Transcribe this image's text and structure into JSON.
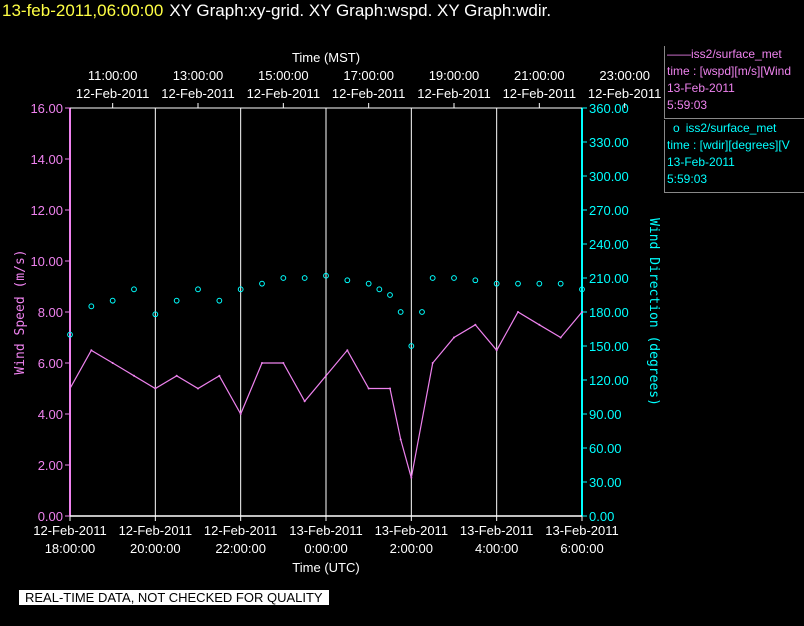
{
  "header": {
    "time": "13-feb-2011,06:00:00",
    "graphs": "XY Graph:xy-grid.  XY Graph:wspd.  XY Graph:wdir."
  },
  "legend": {
    "wspd": {
      "symbol": "——",
      "source": "iss2/surface_met",
      "desc": "time : [wspd][m/s][Wind",
      "date": "13-Feb-2011",
      "time": "5:59:03"
    },
    "wdir": {
      "symbol": "o",
      "source": "iss2/surface_met",
      "desc": "time : [wdir][degrees][V",
      "date": "13-Feb-2011",
      "time": "5:59:03"
    }
  },
  "disclaimer": "REAL-TIME DATA, NOT CHECKED FOR QUALITY",
  "colors": {
    "wspd": "#ee82ee",
    "wdir": "#00ffff",
    "grid": "#ffffff",
    "background": "#000000"
  },
  "chart_data": {
    "type": "line",
    "top_axis": {
      "label": "Time (MST)",
      "ticks": [
        {
          "time": "11:00:00",
          "date": "12-Feb-2011"
        },
        {
          "time": "13:00:00",
          "date": "12-Feb-2011"
        },
        {
          "time": "15:00:00",
          "date": "12-Feb-2011"
        },
        {
          "time": "17:00:00",
          "date": "12-Feb-2011"
        },
        {
          "time": "19:00:00",
          "date": "12-Feb-2011"
        },
        {
          "time": "21:00:00",
          "date": "12-Feb-2011"
        },
        {
          "time": "23:00:00",
          "date": "12-Feb-2011"
        }
      ]
    },
    "bottom_axis": {
      "label": "Time (UTC)",
      "range_hours_utc": [
        18,
        30
      ],
      "ticks": [
        {
          "date": "12-Feb-2011",
          "time": "18:00:00"
        },
        {
          "date": "12-Feb-2011",
          "time": "20:00:00"
        },
        {
          "date": "12-Feb-2011",
          "time": "22:00:00"
        },
        {
          "date": "13-Feb-2011",
          "time": "0:00:00"
        },
        {
          "date": "13-Feb-2011",
          "time": "2:00:00"
        },
        {
          "date": "13-Feb-2011",
          "time": "4:00:00"
        },
        {
          "date": "13-Feb-2011",
          "time": "6:00:00"
        }
      ]
    },
    "left_axis": {
      "label": "Wind Speed (m/s)",
      "ylim": [
        0,
        16
      ],
      "ticks": [
        "0.00",
        "2.00",
        "4.00",
        "6.00",
        "8.00",
        "10.00",
        "12.00",
        "14.00",
        "16.00"
      ]
    },
    "right_axis": {
      "label": "Wind Direction (degrees)",
      "ylim": [
        0,
        360
      ],
      "ticks": [
        "0.00",
        "30.00",
        "60.00",
        "90.00",
        "120.00",
        "150.00",
        "180.00",
        "210.00",
        "240.00",
        "270.00",
        "300.00",
        "330.00",
        "360.00"
      ]
    },
    "grid": "vertical",
    "series": [
      {
        "key": "wspd",
        "axis": "left",
        "style": "line",
        "x": [
          18.0,
          18.5,
          19.0,
          19.5,
          20.0,
          20.5,
          21.0,
          21.5,
          22.0,
          22.5,
          23.0,
          23.5,
          24.0,
          24.5,
          25.0,
          25.5,
          25.75,
          26.0,
          26.5,
          27.0,
          27.5,
          28.0,
          28.5,
          29.0,
          29.5,
          30.0
        ],
        "values": [
          5.0,
          6.5,
          6.0,
          5.5,
          5.0,
          5.5,
          5.0,
          5.5,
          4.0,
          6.0,
          6.0,
          4.5,
          5.5,
          6.5,
          5.0,
          5.0,
          3.0,
          1.5,
          6.0,
          7.0,
          7.5,
          6.5,
          8.0,
          7.5,
          7.0,
          8.0
        ]
      },
      {
        "key": "wdir",
        "axis": "right",
        "style": "scatter",
        "x": [
          18.0,
          18.5,
          19.0,
          19.5,
          20.0,
          20.5,
          21.0,
          21.5,
          22.0,
          22.5,
          23.0,
          23.5,
          24.0,
          24.5,
          25.0,
          25.25,
          25.5,
          25.75,
          26.0,
          26.25,
          26.5,
          27.0,
          27.5,
          28.0,
          28.5,
          29.0,
          29.5,
          30.0
        ],
        "values": [
          160,
          185,
          190,
          200,
          178,
          190,
          200,
          190,
          200,
          205,
          210,
          210,
          212,
          208,
          205,
          200,
          195,
          180,
          150,
          180,
          210,
          210,
          208,
          205,
          205,
          205,
          205,
          200
        ]
      }
    ]
  }
}
